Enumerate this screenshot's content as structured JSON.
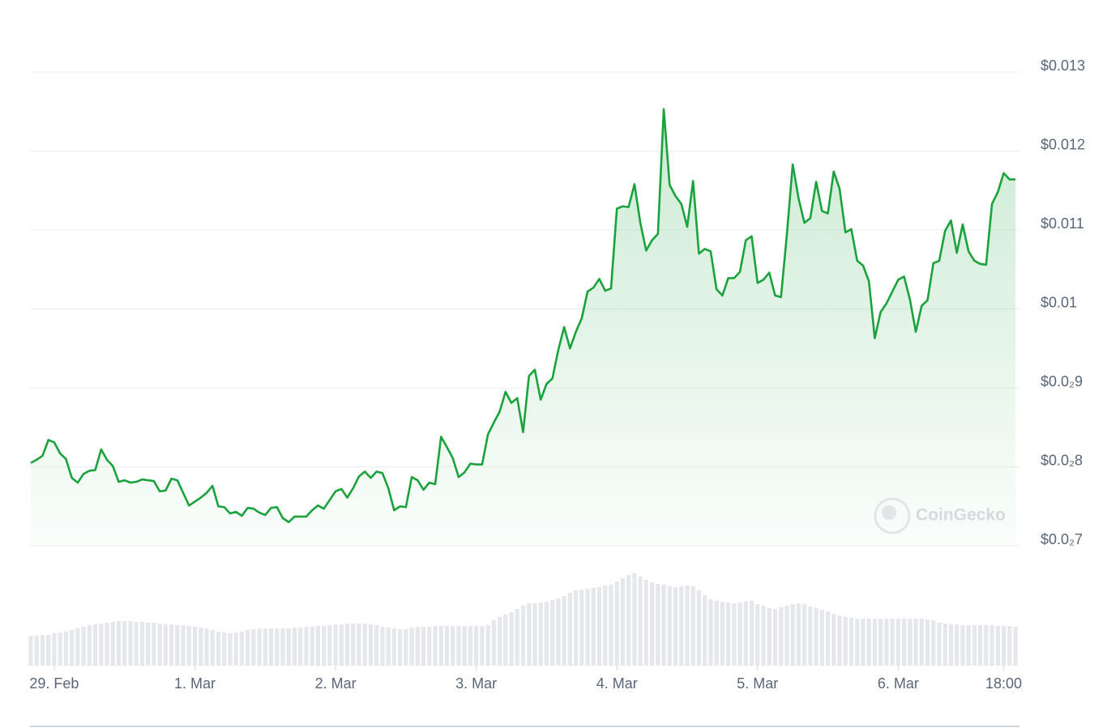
{
  "chart_data": {
    "type": "line",
    "color": "#1aa33c",
    "volume_color": "#e6e7ea",
    "watermark": "CoinGecko",
    "grid": true,
    "xlim": [
      0,
      168
    ],
    "xticks": [
      {
        "value": 4,
        "label": "29. Feb"
      },
      {
        "value": 28,
        "label": "1. Mar"
      },
      {
        "value": 52,
        "label": "2. Mar"
      },
      {
        "value": 76,
        "label": "3. Mar"
      },
      {
        "value": 100,
        "label": "4. Mar"
      },
      {
        "value": 124,
        "label": "5. Mar"
      },
      {
        "value": 148,
        "label": "6. Mar"
      },
      {
        "value": 166,
        "label": "18:00"
      }
    ],
    "ylim": [
      0.007,
      0.013
    ],
    "yticks": [
      {
        "value": 0.013,
        "label": "$0.013"
      },
      {
        "value": 0.012,
        "label": "$0.012"
      },
      {
        "value": 0.011,
        "label": "$0.011"
      },
      {
        "value": 0.01,
        "label": "$0.01"
      },
      {
        "value": 0.009,
        "label": "$0.0₂9"
      },
      {
        "value": 0.008,
        "label": "$0.0₂8"
      },
      {
        "value": 0.007,
        "label": "$0.0₂7"
      }
    ],
    "values": [
      0.00805,
      0.00809,
      0.00814,
      0.00834,
      0.00831,
      0.00817,
      0.0081,
      0.00786,
      0.0078,
      0.00791,
      0.00795,
      0.00796,
      0.00822,
      0.00809,
      0.00801,
      0.00781,
      0.00783,
      0.0078,
      0.00781,
      0.00784,
      0.00783,
      0.00782,
      0.00769,
      0.0077,
      0.00785,
      0.00783,
      0.00767,
      0.00751,
      0.00756,
      0.00761,
      0.00767,
      0.00776,
      0.0075,
      0.00749,
      0.00741,
      0.00743,
      0.00738,
      0.00748,
      0.00747,
      0.00742,
      0.00739,
      0.00748,
      0.00749,
      0.00735,
      0.0073,
      0.00737,
      0.00737,
      0.00737,
      0.00745,
      0.00751,
      0.00747,
      0.00758,
      0.00769,
      0.00772,
      0.00761,
      0.00773,
      0.00788,
      0.00794,
      0.00786,
      0.00794,
      0.00792,
      0.00773,
      0.00745,
      0.0075,
      0.00749,
      0.00787,
      0.00783,
      0.00771,
      0.0078,
      0.00778,
      0.00838,
      0.00825,
      0.00811,
      0.00787,
      0.00793,
      0.00804,
      0.00803,
      0.00803,
      0.00841,
      0.00856,
      0.0087,
      0.00895,
      0.00881,
      0.00887,
      0.00844,
      0.00915,
      0.00923,
      0.00885,
      0.00905,
      0.00912,
      0.00948,
      0.00977,
      0.0095,
      0.00971,
      0.00988,
      0.01022,
      0.01027,
      0.01038,
      0.01023,
      0.01026,
      0.01127,
      0.0113,
      0.01129,
      0.01158,
      0.01109,
      0.01074,
      0.01087,
      0.01095,
      0.01253,
      0.01157,
      0.01143,
      0.01133,
      0.01104,
      0.01162,
      0.0107,
      0.01076,
      0.01073,
      0.01025,
      0.01017,
      0.01039,
      0.01039,
      0.01047,
      0.01087,
      0.01092,
      0.01033,
      0.01037,
      0.01046,
      0.01017,
      0.01015,
      0.01094,
      0.01183,
      0.0114,
      0.01109,
      0.01115,
      0.01161,
      0.01124,
      0.01121,
      0.01174,
      0.01152,
      0.01097,
      0.01101,
      0.01061,
      0.01055,
      0.01035,
      0.00963,
      0.00996,
      0.01007,
      0.01022,
      0.01037,
      0.01041,
      0.01012,
      0.00971,
      0.01004,
      0.01011,
      0.01058,
      0.01061,
      0.01099,
      0.01112,
      0.01071,
      0.01107,
      0.01073,
      0.01061,
      0.01057,
      0.01056,
      0.01133,
      0.01148,
      0.01172,
      0.01164,
      0.01164
    ],
    "volume": [
      37,
      37,
      38,
      38,
      40,
      41,
      42,
      44,
      46,
      48,
      50,
      51,
      52,
      53,
      54,
      55,
      55,
      55,
      54,
      54,
      53,
      53,
      52,
      51,
      51,
      50,
      50,
      49,
      48,
      47,
      46,
      44,
      42,
      41,
      40,
      41,
      42,
      44,
      45,
      46,
      46,
      46,
      46,
      46,
      46,
      47,
      47,
      48,
      48,
      49,
      49,
      50,
      51,
      51,
      52,
      52,
      52,
      52,
      51,
      50,
      48,
      47,
      46,
      45,
      45,
      47,
      48,
      48,
      48,
      49,
      49,
      49,
      49,
      49,
      49,
      49,
      49,
      49,
      50,
      56,
      60,
      63,
      66,
      70,
      74,
      77,
      77,
      78,
      79,
      81,
      83,
      86,
      90,
      93,
      94,
      95,
      96,
      97,
      99,
      100,
      104,
      108,
      112,
      114,
      110,
      106,
      103,
      101,
      100,
      98,
      97,
      98,
      99,
      98,
      93,
      87,
      82,
      80,
      79,
      78,
      77,
      78,
      79,
      80,
      76,
      74,
      71,
      70,
      72,
      74,
      76,
      77,
      76,
      73,
      71,
      69,
      67,
      64,
      62,
      60,
      59,
      58,
      58,
      58,
      58,
      58,
      58,
      58,
      58,
      58,
      58,
      58,
      58,
      57,
      56,
      53,
      52,
      51,
      51,
      50,
      50,
      50,
      50,
      50,
      50,
      49,
      49,
      49,
      48
    ]
  }
}
